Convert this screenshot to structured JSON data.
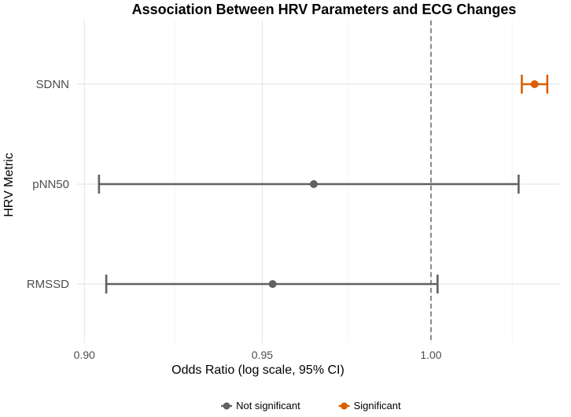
{
  "chart_data": {
    "type": "forest",
    "title": "Association Between HRV Parameters and ECG Changes",
    "xlabel": "Odds Ratio (log scale, 95% CI)",
    "ylabel": "HRV Metric",
    "xlim": [
      0.898,
      1.04
    ],
    "x_ticks": [
      {
        "value": 0.9,
        "label": "0.90"
      },
      {
        "value": 0.95,
        "label": "0.95"
      },
      {
        "value": 1.0,
        "label": "1.00"
      }
    ],
    "minor_gridlines": [
      0.925,
      0.975,
      1.025
    ],
    "reference_line": 1.0,
    "grid": true,
    "legend_position": "bottom",
    "colors": {
      "not_significant": "#616161",
      "significant": "#d95f02",
      "grid_major": "#e6e6e6",
      "grid_minor": "#f2f2f2",
      "reference": "#666666"
    },
    "legend": [
      {
        "label": "Not significant",
        "key": "not_significant"
      },
      {
        "label": "Significant",
        "key": "significant"
      }
    ],
    "rows": [
      {
        "metric": "SDNN",
        "or": 1.032,
        "ci_low": 1.028,
        "ci_high": 1.036,
        "significance": "significant"
      },
      {
        "metric": "pNN50",
        "or": 0.965,
        "ci_low": 0.904,
        "ci_high": 1.027,
        "significance": "not_significant"
      },
      {
        "metric": "RMSSD",
        "or": 0.953,
        "ci_low": 0.906,
        "ci_high": 1.002,
        "significance": "not_significant"
      }
    ]
  }
}
